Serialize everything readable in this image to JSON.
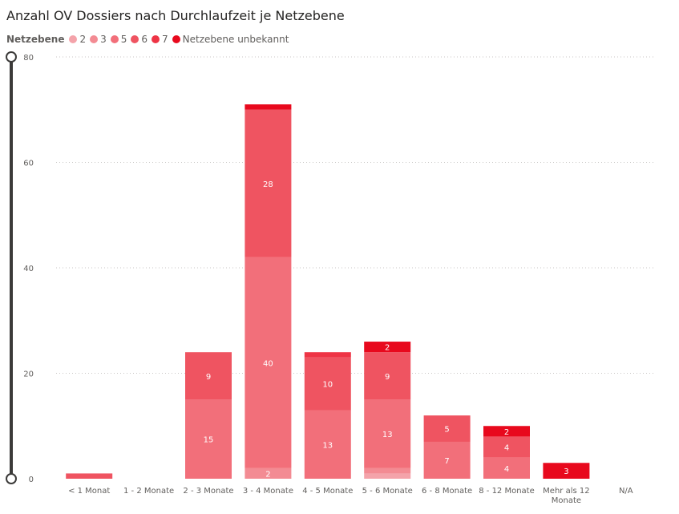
{
  "title": "Anzahl OV Dossiers nach Durchlaufzeit je Netzebene",
  "legend": {
    "title": "Netzebene",
    "items": [
      {
        "label": "2",
        "color": "#f4a3aa"
      },
      {
        "label": "3",
        "color": "#f38b93"
      },
      {
        "label": "5",
        "color": "#f26f7a"
      },
      {
        "label": "6",
        "color": "#ef5461"
      },
      {
        "label": "7",
        "color": "#ee3445"
      },
      {
        "label": "Netzebene unbekannt",
        "color": "#e8091d"
      }
    ]
  },
  "chart_data": {
    "type": "bar",
    "stacked": true,
    "categories": [
      "< 1 Monat",
      "1 - 2 Monate",
      "2 - 3 Monate",
      "3 - 4 Monate",
      "4 - 5 Monate",
      "5 - 6 Monate",
      "6 - 8 Monate",
      "8 - 12 Monate",
      "Mehr als 12 Monate",
      "N/A"
    ],
    "series": [
      {
        "name": "2",
        "color": "#f4a3aa",
        "values": [
          0,
          0,
          0,
          0,
          0,
          1,
          0,
          0,
          0,
          0
        ]
      },
      {
        "name": "3",
        "color": "#f38b93",
        "values": [
          0,
          0,
          0,
          2,
          0,
          1,
          0,
          0,
          0,
          0
        ]
      },
      {
        "name": "5",
        "color": "#f26f7a",
        "values": [
          0,
          0,
          15,
          40,
          13,
          13,
          7,
          4,
          0,
          0
        ]
      },
      {
        "name": "6",
        "color": "#ef5461",
        "values": [
          1,
          0,
          9,
          28,
          10,
          9,
          5,
          4,
          0,
          0
        ]
      },
      {
        "name": "7",
        "color": "#ee3445",
        "values": [
          0,
          0,
          0,
          0,
          1,
          0,
          0,
          0,
          0,
          0
        ]
      },
      {
        "name": "Netzebene unbekannt",
        "color": "#e8091d",
        "values": [
          0,
          0,
          0,
          1,
          0,
          2,
          0,
          2,
          3,
          0
        ]
      }
    ],
    "data_labels": [
      {
        "category": 2,
        "series": 2,
        "text": "15"
      },
      {
        "category": 2,
        "series": 3,
        "text": "9"
      },
      {
        "category": 3,
        "series": 1,
        "text": "2"
      },
      {
        "category": 3,
        "series": 2,
        "text": "40"
      },
      {
        "category": 3,
        "series": 3,
        "text": "28"
      },
      {
        "category": 4,
        "series": 2,
        "text": "13"
      },
      {
        "category": 4,
        "series": 3,
        "text": "10"
      },
      {
        "category": 5,
        "series": 2,
        "text": "13"
      },
      {
        "category": 5,
        "series": 3,
        "text": "9"
      },
      {
        "category": 5,
        "series": 5,
        "text": "2"
      },
      {
        "category": 6,
        "series": 2,
        "text": "7"
      },
      {
        "category": 6,
        "series": 3,
        "text": "5"
      },
      {
        "category": 7,
        "series": 2,
        "text": "4"
      },
      {
        "category": 7,
        "series": 3,
        "text": "4"
      },
      {
        "category": 7,
        "series": 5,
        "text": "2"
      },
      {
        "category": 8,
        "series": 5,
        "text": "3"
      }
    ],
    "y_ticks": [
      0,
      20,
      40,
      60,
      80
    ],
    "ylim": [
      0,
      80
    ],
    "grid": true,
    "legend_position": "top-left",
    "zoom_slider": {
      "min": 0,
      "max": 80
    }
  }
}
